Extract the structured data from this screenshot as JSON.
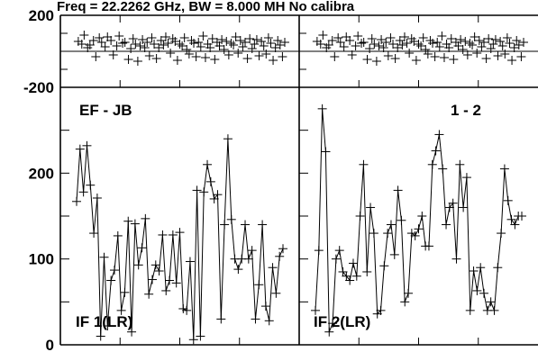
{
  "chart_data": {
    "type": "scatter",
    "title": "Freq = 22.2262 GHz, BW = 8.000 MH   No calibra",
    "baseline": "EF - JB",
    "phase_panel": {
      "ylim": [
        -200,
        200
      ],
      "yticks": [
        "200",
        "-200"
      ]
    },
    "amplitude_panel": {
      "ylim": [
        0,
        300
      ],
      "yticks": [
        "200",
        "100",
        "0"
      ]
    },
    "xlim": [
      0,
      60
    ],
    "panels": [
      {
        "label": "IF 1(LR)",
        "corner_label": "",
        "phase": [
          [
            3,
            55
          ],
          [
            6,
            40
          ],
          [
            8,
            90
          ],
          [
            11,
            20
          ],
          [
            13,
            35
          ],
          [
            16,
            60
          ],
          [
            18,
            -30
          ],
          [
            21,
            75
          ],
          [
            23,
            50
          ],
          [
            26,
            25
          ],
          [
            28,
            80
          ],
          [
            31,
            60
          ],
          [
            33,
            -20
          ],
          [
            36,
            30
          ],
          [
            38,
            85
          ],
          [
            41,
            45
          ],
          [
            43,
            50
          ],
          [
            46,
            -45
          ],
          [
            48,
            15
          ],
          [
            50,
            70
          ],
          [
            52,
            40
          ],
          [
            54,
            -55
          ],
          [
            56,
            30
          ],
          [
            58,
            65
          ],
          [
            60,
            20
          ],
          [
            62,
            50
          ],
          [
            64,
            -25
          ],
          [
            66,
            75
          ],
          [
            68,
            40
          ],
          [
            70,
            -40
          ],
          [
            72,
            20
          ],
          [
            74,
            60
          ],
          [
            76,
            35
          ],
          [
            78,
            80
          ],
          [
            80,
            45
          ],
          [
            82,
            -10
          ],
          [
            84,
            70
          ],
          [
            86,
            55
          ],
          [
            88,
            -50
          ],
          [
            90,
            40
          ],
          [
            92,
            30
          ],
          [
            94,
            75
          ],
          [
            96,
            10
          ],
          [
            98,
            -15
          ],
          [
            100,
            60
          ],
          [
            102,
            45
          ],
          [
            104,
            -30
          ],
          [
            106,
            50
          ],
          [
            108,
            25
          ],
          [
            110,
            85
          ],
          [
            112,
            -35
          ],
          [
            114,
            40
          ],
          [
            116,
            20
          ],
          [
            118,
            70
          ],
          [
            120,
            -45
          ],
          [
            122,
            50
          ],
          [
            124,
            30
          ],
          [
            126,
            65
          ],
          [
            128,
            10
          ],
          [
            130,
            55
          ],
          [
            132,
            -20
          ],
          [
            134,
            45
          ],
          [
            136,
            35
          ],
          [
            138,
            80
          ],
          [
            140,
            -10
          ],
          [
            142,
            60
          ],
          [
            144,
            25
          ],
          [
            146,
            50
          ],
          [
            148,
            -40
          ],
          [
            150,
            70
          ],
          [
            152,
            15
          ],
          [
            154,
            40
          ],
          [
            156,
            65
          ],
          [
            158,
            -25
          ],
          [
            160,
            55
          ],
          [
            162,
            30
          ],
          [
            164,
            -15
          ],
          [
            166,
            75
          ],
          [
            168,
            45
          ],
          [
            170,
            -50
          ],
          [
            172,
            20
          ],
          [
            174,
            60
          ],
          [
            176,
            35
          ],
          [
            178,
            -30
          ],
          [
            180,
            50
          ]
        ],
        "amplitude": [
          [
            0,
            167
          ],
          [
            1,
            228
          ],
          [
            2,
            178
          ],
          [
            3,
            232
          ],
          [
            4,
            186
          ],
          [
            5,
            130
          ],
          [
            6,
            171
          ],
          [
            7,
            10
          ],
          [
            8,
            102
          ],
          [
            9,
            22
          ],
          [
            10,
            75
          ],
          [
            11,
            87
          ],
          [
            12,
            127
          ],
          [
            13,
            40
          ],
          [
            14,
            61
          ],
          [
            15,
            144
          ],
          [
            16,
            15
          ],
          [
            17,
            141
          ],
          [
            18,
            93
          ],
          [
            19,
            113
          ],
          [
            20,
            147
          ],
          [
            21,
            59
          ],
          [
            22,
            76
          ],
          [
            23,
            93
          ],
          [
            24,
            86
          ],
          [
            25,
            128
          ],
          [
            26,
            63
          ],
          [
            27,
            75
          ],
          [
            28,
            128
          ],
          [
            29,
            72
          ],
          [
            30,
            131
          ],
          [
            31,
            42
          ],
          [
            32,
            40
          ],
          [
            33,
            97
          ],
          [
            34,
            6
          ],
          [
            35,
            180
          ],
          [
            36,
            10
          ],
          [
            37,
            178
          ],
          [
            38,
            210
          ],
          [
            39,
            190
          ],
          [
            40,
            170
          ],
          [
            41,
            175
          ],
          [
            42,
            30
          ],
          [
            43,
            140
          ],
          [
            44,
            240
          ],
          [
            45,
            146
          ],
          [
            46,
            100
          ],
          [
            47,
            88
          ],
          [
            48,
            100
          ],
          [
            49,
            140
          ],
          [
            50,
            100
          ],
          [
            51,
            110
          ],
          [
            52,
            30
          ],
          [
            53,
            70
          ],
          [
            54,
            140
          ],
          [
            55,
            45
          ],
          [
            56,
            28
          ],
          [
            57,
            90
          ],
          [
            58,
            60
          ],
          [
            59,
            103
          ],
          [
            60,
            112
          ]
        ]
      },
      {
        "label": "IF 2(LR)",
        "corner_label": "1 - 2",
        "phase": [
          [
            3,
            55
          ],
          [
            6,
            40
          ],
          [
            8,
            90
          ],
          [
            11,
            20
          ],
          [
            13,
            35
          ],
          [
            16,
            60
          ],
          [
            18,
            -30
          ],
          [
            21,
            75
          ],
          [
            23,
            50
          ],
          [
            26,
            25
          ],
          [
            28,
            80
          ],
          [
            31,
            60
          ],
          [
            33,
            -20
          ],
          [
            36,
            30
          ],
          [
            38,
            85
          ],
          [
            41,
            45
          ],
          [
            43,
            50
          ],
          [
            46,
            -45
          ],
          [
            48,
            15
          ],
          [
            50,
            70
          ],
          [
            52,
            40
          ],
          [
            54,
            -55
          ],
          [
            56,
            30
          ],
          [
            58,
            65
          ],
          [
            60,
            20
          ],
          [
            62,
            50
          ],
          [
            64,
            -25
          ],
          [
            66,
            75
          ],
          [
            68,
            40
          ],
          [
            70,
            -40
          ],
          [
            72,
            20
          ],
          [
            74,
            60
          ],
          [
            76,
            35
          ],
          [
            78,
            80
          ],
          [
            80,
            45
          ],
          [
            82,
            -10
          ],
          [
            84,
            70
          ],
          [
            86,
            55
          ],
          [
            88,
            -50
          ],
          [
            90,
            40
          ],
          [
            92,
            30
          ],
          [
            94,
            75
          ],
          [
            96,
            10
          ],
          [
            98,
            -15
          ],
          [
            100,
            60
          ],
          [
            102,
            45
          ],
          [
            104,
            -30
          ],
          [
            106,
            50
          ],
          [
            108,
            25
          ],
          [
            110,
            85
          ],
          [
            112,
            -35
          ],
          [
            114,
            40
          ],
          [
            116,
            20
          ],
          [
            118,
            70
          ],
          [
            120,
            -45
          ],
          [
            122,
            50
          ],
          [
            124,
            30
          ],
          [
            126,
            65
          ],
          [
            128,
            10
          ],
          [
            130,
            55
          ],
          [
            132,
            -20
          ],
          [
            134,
            45
          ],
          [
            136,
            35
          ],
          [
            138,
            80
          ],
          [
            140,
            -10
          ],
          [
            142,
            60
          ],
          [
            144,
            25
          ],
          [
            146,
            50
          ],
          [
            148,
            -40
          ],
          [
            150,
            70
          ],
          [
            152,
            15
          ],
          [
            154,
            40
          ],
          [
            156,
            65
          ],
          [
            158,
            -25
          ],
          [
            160,
            55
          ],
          [
            162,
            30
          ],
          [
            164,
            -15
          ],
          [
            166,
            75
          ],
          [
            168,
            45
          ],
          [
            170,
            -50
          ],
          [
            172,
            20
          ],
          [
            174,
            60
          ],
          [
            176,
            35
          ],
          [
            178,
            -30
          ],
          [
            180,
            50
          ]
        ],
        "amplitude": [
          [
            0,
            40
          ],
          [
            1,
            110
          ],
          [
            2,
            275
          ],
          [
            3,
            225
          ],
          [
            4,
            15
          ],
          [
            5,
            25
          ],
          [
            6,
            100
          ],
          [
            7,
            110
          ],
          [
            8,
            85
          ],
          [
            9,
            80
          ],
          [
            10,
            75
          ],
          [
            11,
            95
          ],
          [
            12,
            80
          ],
          [
            13,
            150
          ],
          [
            14,
            210
          ],
          [
            15,
            85
          ],
          [
            16,
            160
          ],
          [
            17,
            130
          ],
          [
            18,
            36
          ],
          [
            19,
            40
          ],
          [
            20,
            92
          ],
          [
            21,
            130
          ],
          [
            22,
            140
          ],
          [
            23,
            105
          ],
          [
            24,
            180
          ],
          [
            25,
            145
          ],
          [
            26,
            50
          ],
          [
            27,
            60
          ],
          [
            28,
            130
          ],
          [
            29,
            127
          ],
          [
            30,
            135
          ],
          [
            31,
            150
          ],
          [
            32,
            115
          ],
          [
            33,
            115
          ],
          [
            34,
            210
          ],
          [
            35,
            226
          ],
          [
            36,
            245
          ],
          [
            37,
            205
          ],
          [
            38,
            140
          ],
          [
            39,
            160
          ],
          [
            40,
            165
          ],
          [
            41,
            100
          ],
          [
            42,
            210
          ],
          [
            43,
            160
          ],
          [
            44,
            195
          ],
          [
            45,
            40
          ],
          [
            46,
            86
          ],
          [
            47,
            63
          ],
          [
            48,
            90
          ],
          [
            49,
            60
          ],
          [
            50,
            40
          ],
          [
            51,
            50
          ],
          [
            52,
            40
          ],
          [
            53,
            90
          ],
          [
            54,
            130
          ],
          [
            55,
            205
          ],
          [
            56,
            168
          ],
          [
            57,
            146
          ],
          [
            58,
            140
          ],
          [
            59,
            150
          ],
          [
            60,
            150
          ]
        ]
      }
    ]
  }
}
